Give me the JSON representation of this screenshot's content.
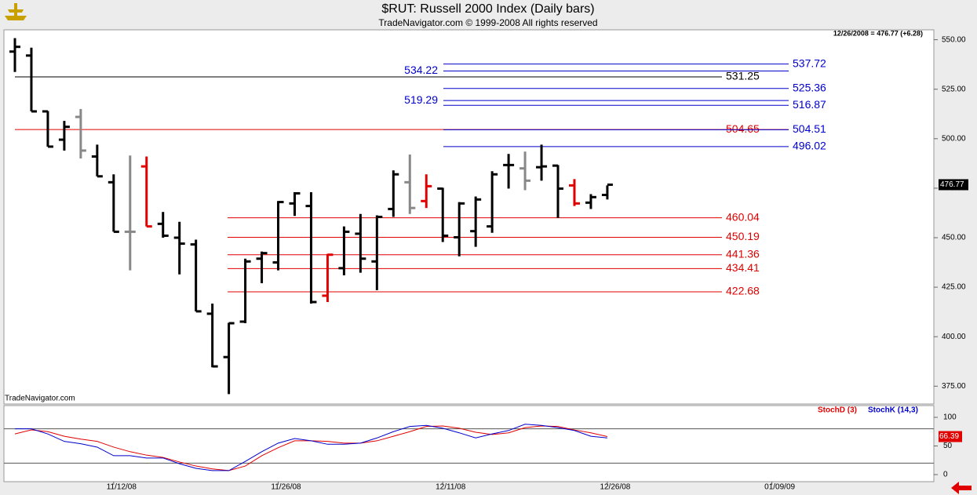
{
  "chart_data": {
    "type": "ohlc",
    "title": "$RUT:  Russell 2000 Index  (Daily bars)",
    "subtitle": "TradeNavigator.com © 1999-2008 All rights reserved",
    "status": "12/26/2008 = 476.77 (+6.28)",
    "watermark": "TradeNavigator.com",
    "open": [
      544,
      542,
      513.8,
      499.5,
      511,
      491,
      478,
      453,
      486,
      457,
      450,
      446.6,
      411.6,
      389.7,
      407.6,
      439.4,
      437.5,
      467.3,
      466,
      420.7,
      434.6,
      452,
      438,
      464.5,
      478,
      468.5,
      474.8,
      450.2,
      453.3,
      455.7,
      486.7,
      485,
      485.6,
      486.4,
      476.4,
      467.7,
      471.6
    ],
    "high": [
      550.8,
      546,
      514,
      509,
      515,
      497,
      482,
      491.5,
      491,
      463,
      458,
      449,
      416.7,
      407,
      439.4,
      443,
      468.5,
      473,
      473,
      441.8,
      455.7,
      462,
      461.3,
      484,
      492,
      482,
      475.2,
      468,
      470.8,
      483.6,
      492.3,
      493.5,
      497,
      486.7,
      479.6,
      472,
      476.4
    ],
    "low": [
      533.7,
      513.8,
      496,
      494,
      490,
      481,
      453,
      433.5,
      455.7,
      450,
      431.5,
      412.8,
      384.5,
      371,
      406.8,
      427,
      433.5,
      461,
      416.7,
      417.5,
      431,
      432.3,
      423.5,
      460.5,
      462,
      465,
      447.8,
      440.6,
      445.4,
      452.5,
      474.8,
      474,
      478.8,
      460,
      466,
      464.5,
      469.3
    ],
    "close": [
      546.4,
      513.8,
      496,
      506,
      494,
      481,
      453,
      453,
      455.7,
      451,
      447,
      412.8,
      385,
      406.8,
      438,
      442.2,
      468,
      472.4,
      417.5,
      441.4,
      453,
      439.4,
      460.5,
      482,
      465,
      476,
      451,
      467.3,
      469.3,
      482,
      486.7,
      478.8,
      486,
      474.8,
      467.3,
      470.49,
      476.77
    ],
    "colors": [
      "#000000",
      "#000000",
      "#000000",
      "#000000",
      "#888888",
      "#000000",
      "#000000",
      "#888888",
      "#e00000",
      "#000000",
      "#000000",
      "#000000",
      "#000000",
      "#000000",
      "#000000",
      "#000000",
      "#000000",
      "#000000",
      "#000000",
      "#e00000",
      "#000000",
      "#000000",
      "#000000",
      "#000000",
      "#888888",
      "#e00000",
      "#000000",
      "#000000",
      "#000000",
      "#000000",
      "#000000",
      "#888888",
      "#000000",
      "#000000",
      "#e00000",
      "#000000",
      "#000000"
    ],
    "ylim": [
      366,
      555
    ],
    "yticks": [
      {
        "value": 375,
        "label": "375.00"
      },
      {
        "value": 400,
        "label": "400.00"
      },
      {
        "value": 425,
        "label": "425.00"
      },
      {
        "value": 450,
        "label": "450.00"
      },
      {
        "value": 475,
        "label": "475.00"
      },
      {
        "value": 500,
        "label": "500.00"
      },
      {
        "value": 525,
        "label": "525.00"
      },
      {
        "value": 550,
        "label": "550.00"
      }
    ],
    "xticks": [
      {
        "value": 6,
        "label": "11/12/08"
      },
      {
        "value": 16,
        "label": "11/26/08"
      },
      {
        "value": 26,
        "label": "12/11/08"
      },
      {
        "value": 36,
        "label": "12/26/08"
      },
      {
        "value": 46,
        "label": "01/09/09"
      }
    ],
    "levels": [
      {
        "value": 537.72,
        "color": "#0000cc"
      },
      {
        "value": 534.22,
        "color": "#0000cc"
      },
      {
        "value": 531.25,
        "color": "#000000"
      },
      {
        "value": 525.36,
        "color": "#0000cc"
      },
      {
        "value": 519.29,
        "color": "#0000cc"
      },
      {
        "value": 516.87,
        "color": "#0000cc"
      },
      {
        "value": 504.65,
        "color": "#e00000"
      },
      {
        "value": 504.51,
        "color": "#0000cc"
      },
      {
        "value": 496.02,
        "color": "#0000cc"
      },
      {
        "value": 460.04,
        "color": "#e00000"
      },
      {
        "value": 450.19,
        "color": "#e00000"
      },
      {
        "value": 441.36,
        "color": "#e00000"
      },
      {
        "value": 434.41,
        "color": "#e00000"
      },
      {
        "value": 422.68,
        "color": "#e00000"
      }
    ],
    "stoch": {
      "ylim": [
        0,
        100
      ],
      "yticks": [
        0,
        50,
        100
      ],
      "bands": [
        20,
        80
      ],
      "series": [
        {
          "name": "StochD (3)",
          "color": "#e00000",
          "values": [
            71,
            78,
            75,
            67,
            62,
            58,
            48,
            40,
            34,
            30,
            22,
            15,
            10,
            7,
            15,
            33,
            47,
            59,
            59,
            58,
            55,
            55,
            59,
            67,
            75,
            84,
            85,
            81,
            74,
            70,
            73,
            82,
            85,
            84,
            78,
            73,
            66.39
          ]
        },
        {
          "name": "StochK (14,3)",
          "color": "#0000cc",
          "values": [
            80,
            80,
            71,
            58,
            54,
            48,
            33,
            33,
            29,
            29,
            19,
            11,
            7,
            7,
            23,
            40,
            55,
            63,
            59,
            53,
            53,
            55,
            64,
            75,
            84,
            86,
            81,
            73,
            64,
            71,
            77,
            88,
            86,
            82,
            77,
            67,
            64
          ]
        }
      ]
    }
  }
}
